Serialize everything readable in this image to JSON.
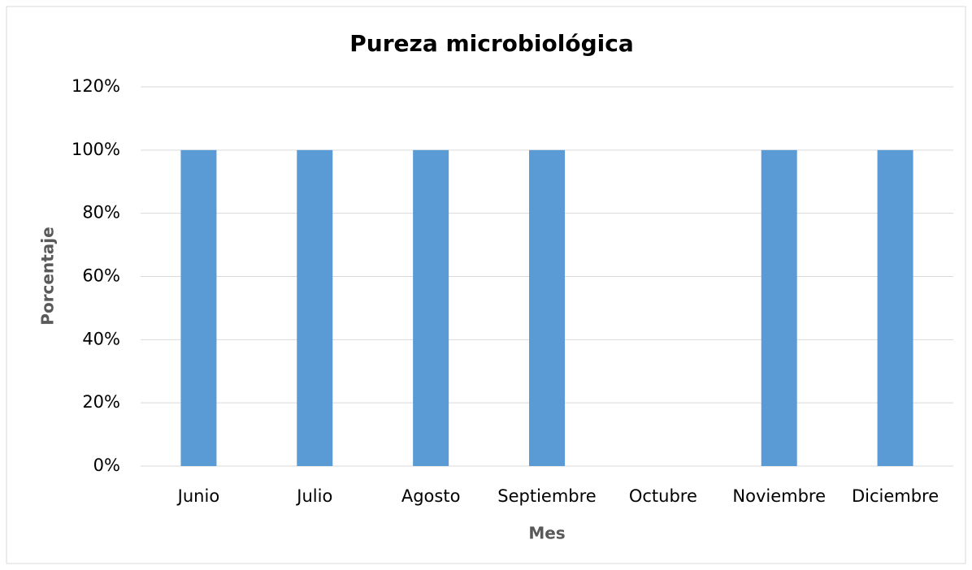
{
  "chart_data": {
    "type": "bar",
    "title": "Pureza microbiológica",
    "x_label": "Mes",
    "y_label": "Porcentaje",
    "categories": [
      "Junio",
      "Julio",
      "Agosto",
      "Septiembre",
      "Octubre",
      "Noviembre",
      "Diciembre"
    ],
    "values": [
      100,
      100,
      100,
      100,
      0,
      100,
      100
    ],
    "color": "#5b9bd5",
    "ylim": [
      0,
      120
    ],
    "yticks": [
      {
        "value": 0,
        "label": "0%"
      },
      {
        "value": 20,
        "label": "20%"
      },
      {
        "value": 40,
        "label": "40%"
      },
      {
        "value": 60,
        "label": "60%"
      },
      {
        "value": 80,
        "label": "80%"
      },
      {
        "value": 100,
        "label": "100%"
      },
      {
        "value": 120,
        "label": "120%"
      }
    ],
    "grid": true
  }
}
